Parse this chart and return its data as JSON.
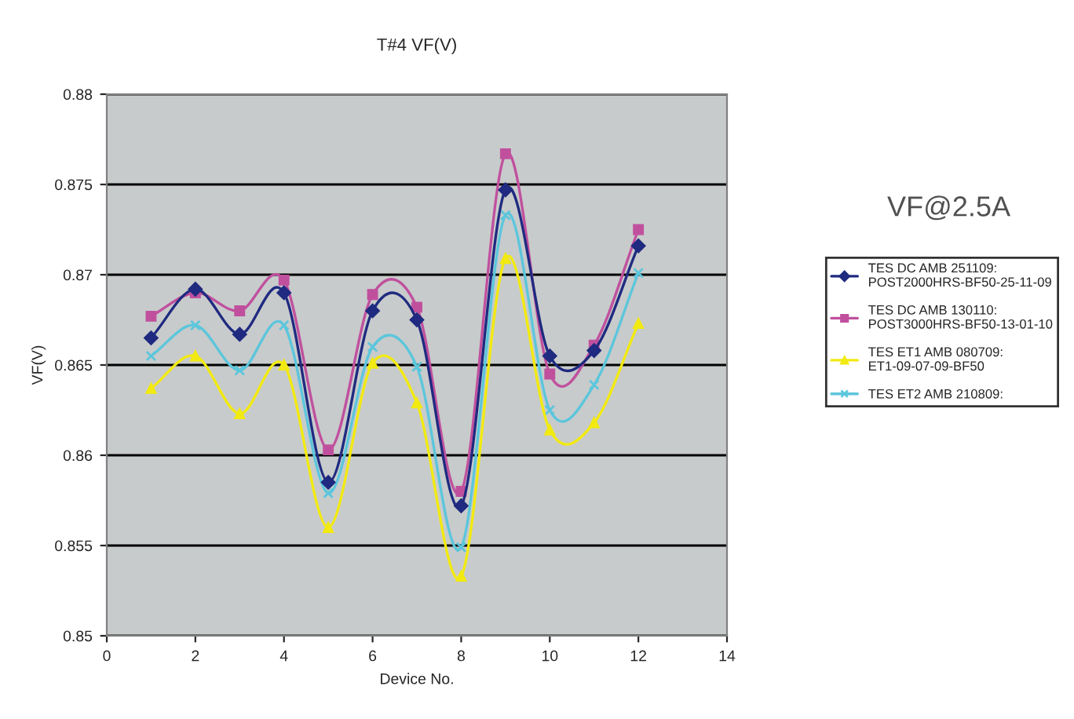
{
  "chart_data": {
    "type": "line",
    "title": "T#4 VF(V)",
    "xlabel": "Device No.",
    "ylabel": "VF(V)",
    "annotations": [
      "VF@2.5A"
    ],
    "x": [
      1,
      2,
      3,
      4,
      5,
      6,
      7,
      8,
      9,
      10,
      11,
      12
    ],
    "series": [
      {
        "name": "TES DC AMB 251109:\nPOST2000HRS-BF50-25-11-09",
        "color": "#1f2a80",
        "marker": "diamond",
        "values": [
          0.8665,
          0.8692,
          0.8667,
          0.869,
          0.8585,
          0.868,
          0.8675,
          0.8572,
          0.8747,
          0.8655,
          0.8658,
          0.8716
        ]
      },
      {
        "name": "TES DC AMB 130110:\nPOST3000HRS-BF50-13-01-10",
        "color": "#c0509e",
        "marker": "square",
        "values": [
          0.8677,
          0.869,
          0.868,
          0.8697,
          0.8603,
          0.8689,
          0.8682,
          0.858,
          0.8767,
          0.8645,
          0.8661,
          0.8725
        ]
      },
      {
        "name": "TES ET1 AMB 080709:\nET1-09-07-09-BF50",
        "color": "#f2ea10",
        "marker": "triangle",
        "values": [
          0.8637,
          0.8655,
          0.8623,
          0.865,
          0.856,
          0.8651,
          0.8629,
          0.8533,
          0.8709,
          0.8614,
          0.8618,
          0.8673
        ]
      },
      {
        "name": "TES ET2 AMB 210809:",
        "color": "#5bc6dc",
        "marker": "cross",
        "values": [
          0.8655,
          0.8672,
          0.8647,
          0.8672,
          0.8579,
          0.866,
          0.8649,
          0.8549,
          0.8733,
          0.8625,
          0.8639,
          0.8701
        ]
      }
    ],
    "xlim": [
      0,
      14
    ],
    "xticks": [
      0,
      2,
      4,
      6,
      8,
      10,
      12,
      14
    ],
    "ylim": [
      0.85,
      0.88
    ],
    "yticks": [
      0.85,
      0.855,
      0.86,
      0.865,
      0.87,
      0.875,
      0.88
    ],
    "grid": "y",
    "legend": "right",
    "line_style": "solid"
  }
}
